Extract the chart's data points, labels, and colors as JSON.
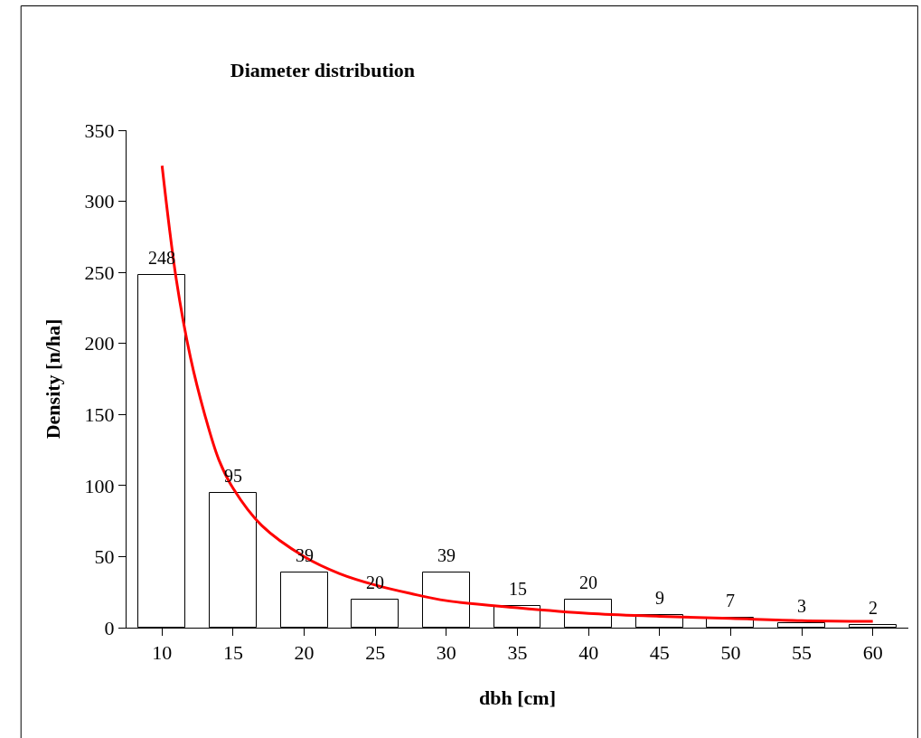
{
  "chart_data": {
    "type": "bar",
    "title": "Diameter distribution",
    "xlabel": "dbh [cm]",
    "ylabel": "Density [n/ha]",
    "x": [
      10,
      15,
      20,
      25,
      30,
      35,
      40,
      45,
      50,
      55,
      60
    ],
    "series": [
      {
        "color": "#ffffff",
        "values": [
          248,
          95,
          39,
          20,
          39,
          15,
          20,
          9,
          7,
          3,
          2
        ],
        "value_labels": [
          "248",
          "95",
          "39",
          "20",
          "39",
          "15",
          "20",
          "9",
          "7",
          "3",
          "2"
        ]
      },
      {
        "type": "line",
        "color": "#ff0000",
        "x": [
          10,
          11,
          12,
          13,
          14,
          15,
          17,
          20,
          22.5,
          25,
          27.5,
          30,
          35,
          40,
          45,
          50,
          55,
          60
        ],
        "values": [
          325,
          245,
          190,
          150,
          118,
          98,
          72,
          50,
          38,
          30,
          24,
          19,
          14,
          10,
          8,
          6.5,
          5,
          4.5
        ]
      }
    ],
    "xlim": [
      7.5,
      62.5
    ],
    "xticks": [
      10,
      15,
      20,
      25,
      30,
      35,
      40,
      45,
      50,
      55,
      60
    ],
    "ylim": [
      0,
      350
    ],
    "yticks": [
      0,
      50,
      100,
      150,
      200,
      250,
      300,
      350
    ]
  }
}
